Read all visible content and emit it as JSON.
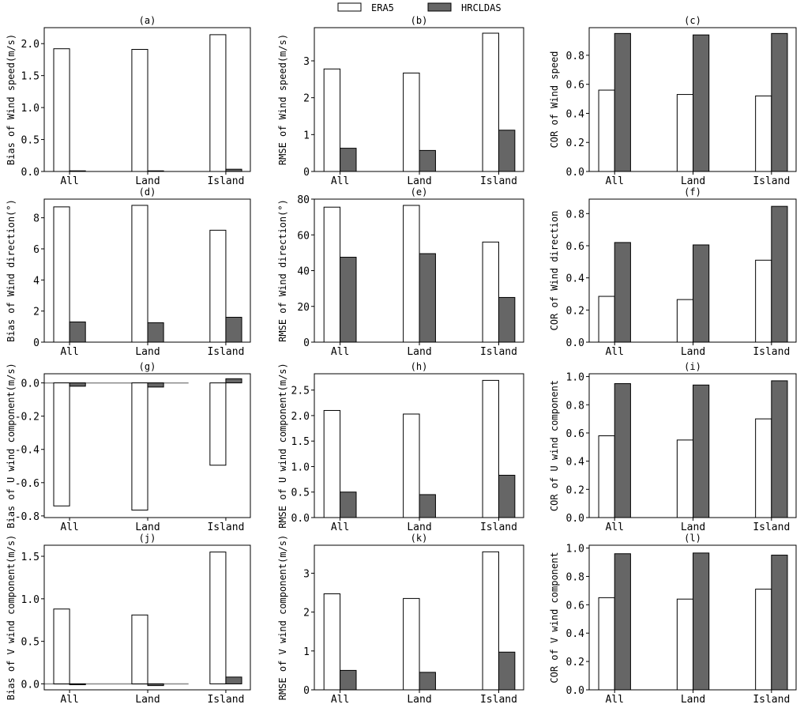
{
  "legend": {
    "series": [
      {
        "name": "ERA5",
        "color": "#ffffff"
      },
      {
        "name": "HRCLDAS",
        "color": "#666666"
      }
    ]
  },
  "chart_data": [
    {
      "type": "bar",
      "title": "(a)",
      "ylabel": "Bias of Wind speed(m/s)",
      "categories": [
        "All",
        "Land",
        "Island"
      ],
      "ylim": [
        0,
        2.25
      ],
      "yticks": [
        "0.0",
        "0.5",
        "1.0",
        "1.5",
        "2.0"
      ],
      "ytick_values": [
        0,
        0.5,
        1,
        1.5,
        2
      ],
      "series": [
        {
          "name": "ERA5",
          "values": [
            1.92,
            1.91,
            2.14
          ]
        },
        {
          "name": "HRCLDAS",
          "values": [
            0.01,
            0.01,
            0.035
          ]
        }
      ]
    },
    {
      "type": "bar",
      "title": "(b)",
      "ylabel": "RMSE of Wind speed(m/s)",
      "categories": [
        "All",
        "Land",
        "Island"
      ],
      "ylim": [
        0,
        3.9
      ],
      "yticks": [
        "0",
        "1",
        "2",
        "3"
      ],
      "ytick_values": [
        0,
        1,
        2,
        3
      ],
      "series": [
        {
          "name": "ERA5",
          "values": [
            2.78,
            2.67,
            3.75
          ]
        },
        {
          "name": "HRCLDAS",
          "values": [
            0.63,
            0.57,
            1.12
          ]
        }
      ]
    },
    {
      "type": "bar",
      "title": "(c)",
      "ylabel": "COR of Wind speed",
      "categories": [
        "All",
        "Land",
        "Island"
      ],
      "ylim": [
        0,
        0.99
      ],
      "yticks": [
        "0.0",
        "0.2",
        "0.4",
        "0.6",
        "0.8"
      ],
      "ytick_values": [
        0,
        0.2,
        0.4,
        0.6,
        0.8
      ],
      "series": [
        {
          "name": "ERA5",
          "values": [
            0.56,
            0.53,
            0.52
          ]
        },
        {
          "name": "HRCLDAS",
          "values": [
            0.95,
            0.94,
            0.95
          ]
        }
      ]
    },
    {
      "type": "bar",
      "title": "(d)",
      "ylabel": "Bias of Wind direction(°)",
      "categories": [
        "All",
        "Land",
        "Island"
      ],
      "ylim": [
        0,
        9.2
      ],
      "yticks": [
        "0",
        "2",
        "4",
        "6",
        "8"
      ],
      "ytick_values": [
        0,
        2,
        4,
        6,
        8
      ],
      "series": [
        {
          "name": "ERA5",
          "values": [
            8.7,
            8.8,
            7.2
          ]
        },
        {
          "name": "HRCLDAS",
          "values": [
            1.3,
            1.25,
            1.6
          ]
        }
      ]
    },
    {
      "type": "bar",
      "title": "(e)",
      "ylabel": "RMSE of Wind direction(°)",
      "categories": [
        "All",
        "Land",
        "Island"
      ],
      "ylim": [
        0,
        80
      ],
      "yticks": [
        "0",
        "20",
        "40",
        "60",
        "80"
      ],
      "ytick_values": [
        0,
        20,
        40,
        60,
        80
      ],
      "series": [
        {
          "name": "ERA5",
          "values": [
            75.5,
            76.5,
            56
          ]
        },
        {
          "name": "HRCLDAS",
          "values": [
            47.5,
            49.5,
            25
          ]
        }
      ]
    },
    {
      "type": "bar",
      "title": "(f)",
      "ylabel": "COR of Wind direction",
      "categories": [
        "All",
        "Land",
        "Island"
      ],
      "ylim": [
        0,
        0.89
      ],
      "yticks": [
        "0.0",
        "0.2",
        "0.4",
        "0.6",
        "0.8"
      ],
      "ytick_values": [
        0,
        0.2,
        0.4,
        0.6,
        0.8
      ],
      "series": [
        {
          "name": "ERA5",
          "values": [
            0.285,
            0.265,
            0.51
          ]
        },
        {
          "name": "HRCLDAS",
          "values": [
            0.62,
            0.605,
            0.845
          ]
        }
      ]
    },
    {
      "type": "bar",
      "title": "(g)",
      "ylabel": "Bias of U wind component(m/s)",
      "categories": [
        "All",
        "Land",
        "Island"
      ],
      "ylim": [
        -0.81,
        0.055
      ],
      "yticks": [
        "-0.8",
        "-0.6",
        "-0.4",
        "-0.2",
        "0.0"
      ],
      "ytick_values": [
        -0.8,
        -0.6,
        -0.4,
        -0.2,
        0
      ],
      "zero_line": true,
      "series": [
        {
          "name": "ERA5",
          "values": [
            -0.74,
            -0.765,
            -0.495
          ]
        },
        {
          "name": "HRCLDAS",
          "values": [
            -0.02,
            -0.025,
            0.025
          ]
        }
      ]
    },
    {
      "type": "bar",
      "title": "(h)",
      "ylabel": "RMSE of U wind component(m/s)",
      "categories": [
        "All",
        "Land",
        "Island"
      ],
      "ylim": [
        0,
        2.82
      ],
      "yticks": [
        "0.0",
        "0.5",
        "1.0",
        "1.5",
        "2.0",
        "2.5"
      ],
      "ytick_values": [
        0,
        0.5,
        1,
        1.5,
        2,
        2.5
      ],
      "series": [
        {
          "name": "ERA5",
          "values": [
            2.1,
            2.03,
            2.69
          ]
        },
        {
          "name": "HRCLDAS",
          "values": [
            0.5,
            0.45,
            0.83
          ]
        }
      ]
    },
    {
      "type": "bar",
      "title": "(i)",
      "ylabel": "COR of U wind component",
      "categories": [
        "All",
        "Land",
        "Island"
      ],
      "ylim": [
        0,
        1.02
      ],
      "yticks": [
        "0.0",
        "0.2",
        "0.4",
        "0.6",
        "0.8",
        "1.0"
      ],
      "ytick_values": [
        0,
        0.2,
        0.4,
        0.6,
        0.8,
        1.0
      ],
      "series": [
        {
          "name": "ERA5",
          "values": [
            0.58,
            0.55,
            0.7
          ]
        },
        {
          "name": "HRCLDAS",
          "values": [
            0.95,
            0.94,
            0.97
          ]
        }
      ]
    },
    {
      "type": "bar",
      "title": "(j)",
      "ylabel": "Bias of V wind component(m/s)",
      "categories": [
        "All",
        "Land",
        "Island"
      ],
      "ylim": [
        -0.07,
        1.63
      ],
      "yticks": [
        "0.0",
        "0.5",
        "1.0",
        "1.5"
      ],
      "ytick_values": [
        0,
        0.5,
        1,
        1.5
      ],
      "zero_line": true,
      "series": [
        {
          "name": "ERA5",
          "values": [
            0.88,
            0.81,
            1.55
          ]
        },
        {
          "name": "HRCLDAS",
          "values": [
            -0.01,
            -0.02,
            0.08
          ]
        }
      ]
    },
    {
      "type": "bar",
      "title": "(k)",
      "ylabel": "RMSE of V wind component(m/s)",
      "categories": [
        "All",
        "Land",
        "Island"
      ],
      "ylim": [
        0,
        3.72
      ],
      "yticks": [
        "0",
        "1",
        "2",
        "3"
      ],
      "ytick_values": [
        0,
        1,
        2,
        3
      ],
      "series": [
        {
          "name": "ERA5",
          "values": [
            2.47,
            2.35,
            3.55
          ]
        },
        {
          "name": "HRCLDAS",
          "values": [
            0.5,
            0.45,
            0.97
          ]
        }
      ]
    },
    {
      "type": "bar",
      "title": "(l)",
      "ylabel": "COR of V wind component",
      "categories": [
        "All",
        "Land",
        "Island"
      ],
      "ylim": [
        0,
        1.02
      ],
      "yticks": [
        "0.0",
        "0.2",
        "0.4",
        "0.6",
        "0.8",
        "1.0"
      ],
      "ytick_values": [
        0,
        0.2,
        0.4,
        0.6,
        0.8,
        1.0
      ],
      "series": [
        {
          "name": "ERA5",
          "values": [
            0.65,
            0.64,
            0.71
          ]
        },
        {
          "name": "HRCLDAS",
          "values": [
            0.96,
            0.965,
            0.95
          ]
        }
      ]
    }
  ]
}
